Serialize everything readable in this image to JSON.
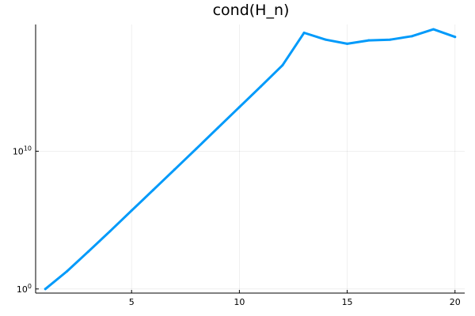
{
  "chart_data": {
    "type": "line",
    "title": "cond(H_n)",
    "xlabel": "",
    "ylabel": "",
    "xlim": [
      0.55,
      20.45
    ],
    "ylim": [
      -0.3,
      19.2
    ],
    "y_scale": "log10",
    "grid": true,
    "legend": "none",
    "x_ticks": [
      5,
      10,
      15,
      20
    ],
    "y_ticks": [
      {
        "value": 0,
        "base": "10",
        "exp": "0"
      },
      {
        "value": 10,
        "base": "10",
        "exp": "10"
      }
    ],
    "series": [
      {
        "color": "#009AFA",
        "x": [
          1,
          2,
          3,
          4,
          5,
          6,
          7,
          8,
          9,
          10,
          11,
          12,
          13,
          14,
          15,
          16,
          17,
          18,
          19,
          20
        ],
        "log10_y": [
          0.0,
          1.28,
          2.72,
          4.19,
          5.69,
          7.18,
          8.68,
          10.18,
          11.69,
          13.2,
          14.71,
          16.24,
          18.6,
          18.1,
          17.8,
          18.05,
          18.1,
          18.35,
          18.85,
          18.3
        ]
      }
    ]
  }
}
